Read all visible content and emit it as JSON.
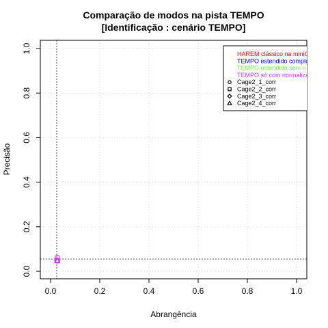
{
  "chart_data": {
    "type": "scatter",
    "title_lines": [
      "Comparação de modos na pista TEMPO",
      "[Identificação : cenário TEMPO]"
    ],
    "xlabel": "Abrangência",
    "ylabel": "Precisão",
    "xlim": [
      0,
      1
    ],
    "ylim": [
      0,
      1
    ],
    "x_ticks": [
      "0.0",
      "0.2",
      "0.4",
      "0.6",
      "0.8",
      "1.0"
    ],
    "y_ticks": [
      "0.0",
      "0.2",
      "0.4",
      "0.6",
      "0.8",
      "1.0"
    ],
    "grid": true,
    "legend_position": "top-right",
    "reference_lines": {
      "x": 0.025,
      "y": 0.055
    },
    "legend": {
      "modes": [
        {
          "label": "HAREM clássico na miniC",
          "color": "#ff0000"
        },
        {
          "label": "TEMPO estendido comple",
          "color": "#0000ff"
        },
        {
          "label": "TEMPO estendido sem n",
          "color": "#66ff33"
        },
        {
          "label": "TEMPO só com normaliza",
          "color": "#cc33ff"
        }
      ],
      "runs": [
        {
          "label": "Cage2_1_corr",
          "shape": "circle"
        },
        {
          "label": "Cage2_2_corr",
          "shape": "square"
        },
        {
          "label": "Cage2_3_corr",
          "shape": "diamond"
        },
        {
          "label": "Cage2_4_corr",
          "shape": "triangle"
        }
      ]
    },
    "series": [
      {
        "mode": 3,
        "run": 0,
        "x": 0.027,
        "y": 0.063
      },
      {
        "mode": 3,
        "run": 1,
        "x": 0.027,
        "y": 0.048
      },
      {
        "mode": 3,
        "run": 2,
        "x": 0.027,
        "y": 0.048
      },
      {
        "mode": 3,
        "run": 3,
        "x": 0.027,
        "y": 0.047
      }
    ]
  }
}
